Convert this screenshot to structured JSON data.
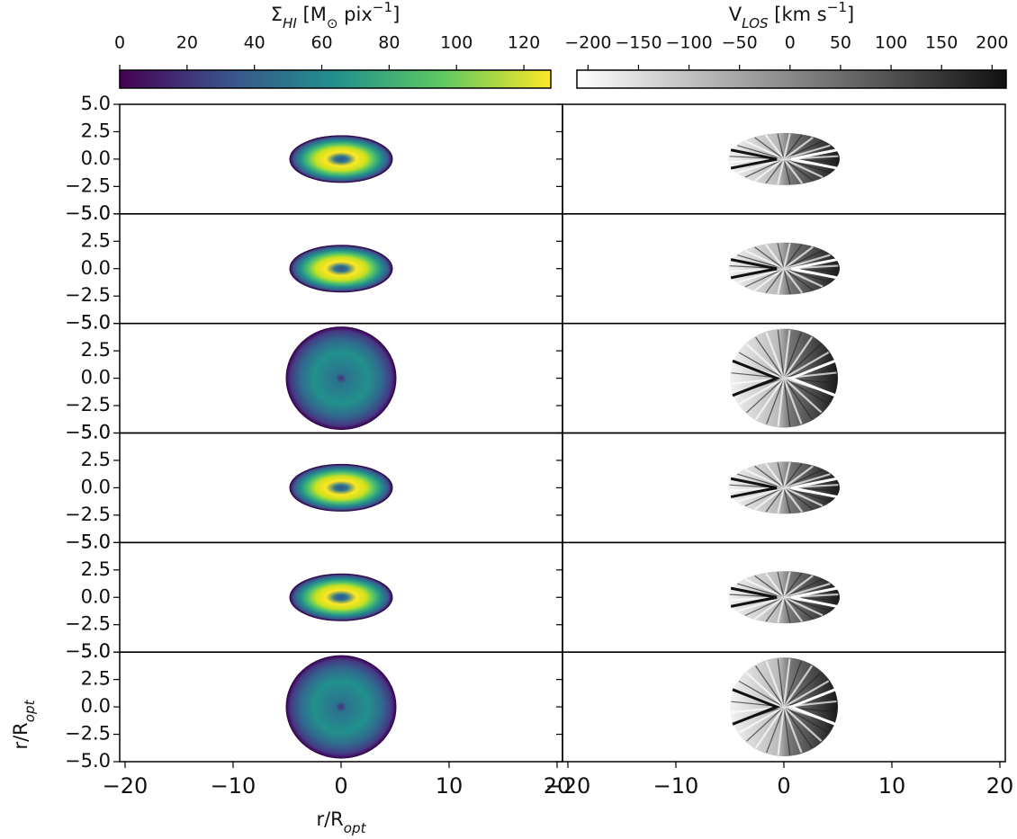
{
  "chart_data": {
    "type": "image-grid",
    "colorbars": [
      {
        "label": [
          "Σ",
          {
            "sub": "HI"
          },
          " [M",
          {
            "sub": "⊙"
          },
          " pix",
          {
            "sup": "−1"
          },
          "]"
        ],
        "clim": [
          0,
          128
        ],
        "ticks": [
          0,
          20,
          40,
          60,
          80,
          100,
          120
        ],
        "colors": [
          "#440154",
          "#3b528b",
          "#21918c",
          "#5ec962",
          "#fde725"
        ]
      },
      {
        "label": [
          "V",
          {
            "sub": "LOS"
          },
          " [km s",
          {
            "sup": "−1"
          },
          "]"
        ],
        "clim": [
          -211,
          214
        ],
        "ticks": [
          {
            "value": -200,
            "label": "−200"
          },
          {
            "value": -150,
            "label": "−150"
          },
          {
            "value": -100,
            "label": "−100"
          },
          {
            "value": -50,
            "label": "−50"
          },
          0,
          50,
          100,
          150,
          200
        ],
        "colors": [
          "#ffffff",
          "#111111"
        ]
      }
    ],
    "xlim": [
      -20.5,
      20.5
    ],
    "xticks": [
      {
        "value": -20,
        "label": "−20"
      },
      {
        "value": -10,
        "label": "−10"
      },
      0,
      10,
      20
    ],
    "ylim": [
      -5,
      5
    ],
    "yticks": [
      {
        "value": 5,
        "label": "5.0"
      },
      {
        "value": 2.5,
        "label": "2.5"
      },
      {
        "value": 0,
        "label": "0.0"
      },
      {
        "value": -2.5,
        "label": "−2.5"
      },
      {
        "value": -5,
        "label": "−5.0"
      }
    ],
    "xlabel": [
      "r/R",
      {
        "sub": "opt"
      }
    ],
    "ylabel": [
      "r/R",
      {
        "sub": "opt"
      }
    ]
  }
}
